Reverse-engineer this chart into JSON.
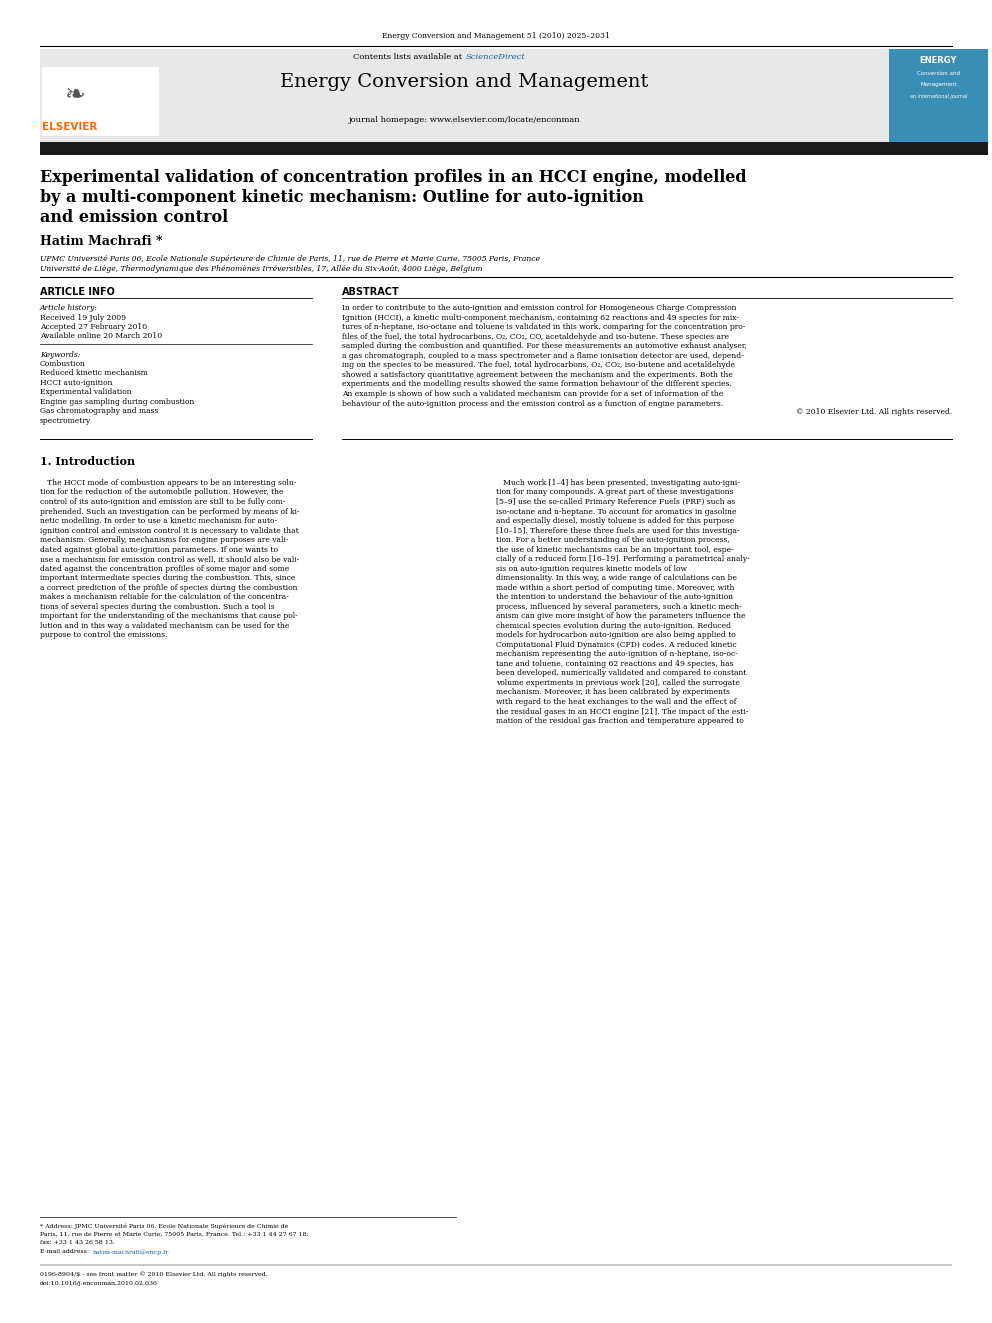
{
  "page_width": 9.92,
  "page_height": 13.23,
  "bg_color": "#ffffff",
  "journal_ref": "Energy Conversion and Management 51 (2010) 2025–2031",
  "contents_line": "Contents lists available at ",
  "sciencedirect_text": "ScienceDirect",
  "sciencedirect_color": "#1a6496",
  "journal_name": "Energy Conversion and Management",
  "journal_homepage": "journal homepage: www.elsevier.com/locate/enconman",
  "header_bg": "#E8E8E8",
  "dark_bar_color": "#1a1a1a",
  "elsevier_orange": "#FF6600",
  "elsevier_text": "ELSEVIER",
  "article_title_line1": "Experimental validation of concentration profiles in an HCCI engine, modelled",
  "article_title_line2": "by a multi-component kinetic mechanism: Outline for auto-ignition",
  "article_title_line3": "and emission control",
  "author": "Hatim Machrafi *",
  "affiliation1": "UPMC Université Paris 06, Ecole Nationale Supérieure de Chimie de Paris, 11, rue de Pierre et Marie Curie, 75005 Paris, France",
  "affiliation2": "Université de Liège, Thermodynamique des Phénomènes Irréversibles, 17, Allée du Six-Août, 4000 Liège, Belgium",
  "section_article_info": "ARTICLE INFO",
  "section_abstract": "ABSTRACT",
  "article_history_label": "Article history:",
  "received": "Received 19 July 2009",
  "accepted": "Accepted 27 February 2010",
  "available": "Available online 20 March 2010",
  "keywords_label": "Keywords:",
  "keywords": [
    "Combustion",
    "Reduced kinetic mechanism",
    "HCCI auto-ignition",
    "Experimental validation",
    "Engine gas sampling during combustion",
    "Gas chromatography and mass",
    "spectrometry"
  ],
  "copyright": "© 2010 Elsevier Ltd. All rights reserved.",
  "section1_title": "1. Introduction",
  "footnote_line1": "* Address: JPMC Université Paris 06, Ecole Nationale Supérieure de Chimie de",
  "footnote_line2": "Paris, 11, rue de Pierre et Marie Curie, 75005 Paris, France. Tel.: +33 1 44 27 67 18;",
  "footnote_line3": "fax: +33 1 43 26 58 13.",
  "footnote_email_label": "E-mail address: ",
  "footnote_email": "hatim-machrafi@encp.fr",
  "issn_line": "0196-8904/$ - see front matter © 2010 Elsevier Ltd. All rights reserved.",
  "doi_line": "doi:10.1016/j.enconman.2010.02.036",
  "abstract_lines": [
    "In order to contribute to the auto-ignition and emission control for Homogeneous Charge Compression",
    "Ignition (HCCI), a kinetic multi-component mechanism, containing 62 reactions and 49 species for mix-",
    "tures of n-heptane, iso-octane and toluene is validated in this work, comparing for the concentration pro-",
    "files of the fuel, the total hydrocarbons, O₂, CO₂, CO, acetaldehyde and iso-butene. These species are",
    "sampled during the combustion and quantified. For these measurements an automotive exhaust analyser,",
    "a gas chromatograph, coupled to a mass spectrometer and a flame ionisation detector are used, depend-",
    "ing on the species to be measured. The fuel, total hydrocarbons, O₂, CO₂, iso-butene and acetaldehyde",
    "showed a satisfactory quantitative agreement between the mechanism and the experiments. Both the",
    "experiments and the modelling results showed the same formation behaviour of the different species.",
    "An example is shown of how such a validated mechanism can provide for a set of information of the",
    "behaviour of the auto-ignition process and the emission control as a function of engine parameters."
  ],
  "intro1_lines": [
    "   The HCCI mode of combustion appears to be an interesting solu-",
    "tion for the reduction of the automobile pollution. However, the",
    "control of its auto-ignition and emission are still to be fully com-",
    "prehended. Such an investigation can be performed by means of ki-",
    "netic modelling. In order to use a kinetic mechanism for auto-",
    "ignition control and emission control it is necessary to validate that",
    "mechanism. Generally, mechanisms for engine purposes are vali-",
    "dated against global auto-ignition parameters. If one wants to",
    "use a mechanism for emission control as well, it should also be vali-",
    "dated against the concentration profiles of some major and some",
    "important intermediate species during the combustion. This, since",
    "a correct prediction of the profile of species during the combustion",
    "makes a mechanism reliable for the calculation of the concentra-",
    "tions of several species during the combustion. Such a tool is",
    "important for the understanding of the mechanisms that cause pol-",
    "lution and in this way a validated mechanism can be used for the",
    "purpose to control the emissions."
  ],
  "intro2_lines": [
    "   Much work [1–4] has been presented, investigating auto-igni-",
    "tion for many compounds. A great part of these investigations",
    "[5–9] use the so-called Primary Reference Fuels (PRF) such as",
    "iso-octane and n-heptane. To account for aromatics in gasoline",
    "and especially diesel, mostly toluene is added for this purpose",
    "[10–15]. Therefore these three fuels are used for this investiga-",
    "tion. For a better understanding of the auto-ignition process,",
    "the use of kinetic mechanisms can be an important tool, espe-",
    "cially of a reduced form [16–19]. Performing a parametrical analy-",
    "sis on auto-ignition requires kinetic models of low",
    "dimensionality. In this way, a wide range of calculations can be",
    "made within a short period of computing time. Moreover, with",
    "the intention to understand the behaviour of the auto-ignition",
    "process, influenced by several parameters, such a kinetic mech-",
    "anism can give more insight of how the parameters influence the",
    "chemical species evolution during the auto-ignition. Reduced",
    "models for hydrocarbon auto-ignition are also being applied to",
    "Computational Fluid Dynamics (CFD) codes. A reduced kinetic",
    "mechanism representing the auto-ignition of n-heptane, iso-oc-",
    "tane and toluene, containing 62 reactions and 49 species, has",
    "been developed, numerically validated and compared to constant",
    "volume experiments in previous work [20], called the surrogate",
    "mechanism. Moreover, it has been calibrated by experiments",
    "with regard to the heat exchanges to the wall and the effect of",
    "the residual gases in an HCCI engine [21]. The impact of the esti-",
    "mation of the residual gas fraction and temperature appeared to"
  ]
}
